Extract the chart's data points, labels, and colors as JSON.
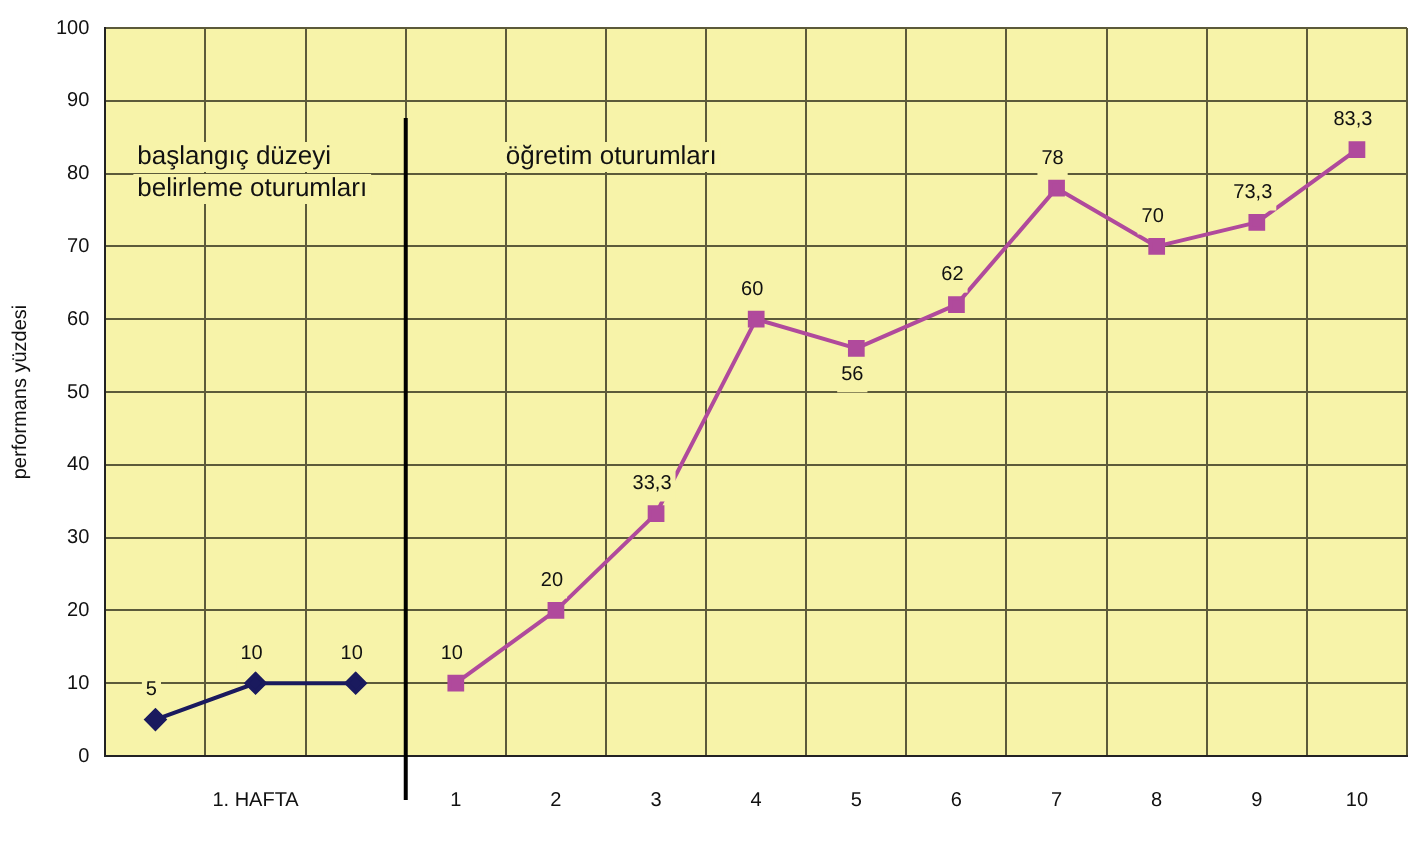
{
  "chart_data": {
    "type": "line",
    "ylabel": "performans yüzdesi",
    "categories": [
      null,
      "1. HAFTA",
      null,
      "1",
      "2",
      "3",
      "4",
      "5",
      "6",
      "7",
      "8",
      "9",
      "10"
    ],
    "series": [
      {
        "color": "#1a1a5e",
        "marker": "diamond",
        "values": [
          5,
          10,
          10,
          null,
          null,
          null,
          null,
          null,
          null,
          null,
          null,
          null,
          null
        ],
        "value_labels": [
          "5",
          "10",
          "10",
          null,
          null,
          null,
          null,
          null,
          null,
          null,
          null,
          null,
          null
        ]
      },
      {
        "color": "#b04a9c",
        "marker": "square",
        "values": [
          null,
          null,
          null,
          10,
          20,
          33.3,
          60,
          56,
          62,
          78,
          70,
          73.3,
          83.3
        ],
        "value_labels": [
          null,
          null,
          null,
          "10",
          "20",
          "33,3",
          "60",
          "56",
          "62",
          "78",
          "70",
          "73,3",
          "83,3"
        ]
      }
    ],
    "ylim": [
      0,
      100
    ],
    "yticks": [
      0,
      10,
      20,
      30,
      40,
      50,
      60,
      70,
      80,
      90,
      100
    ],
    "grid": true,
    "legend": false,
    "line_style": "solid",
    "ref_lines": [
      {
        "axis": "x",
        "value": "1",
        "color": "#000000"
      }
    ],
    "annotations": [
      "başlangıç düzeyi belirleme oturumları",
      "öğretim oturumları"
    ]
  }
}
